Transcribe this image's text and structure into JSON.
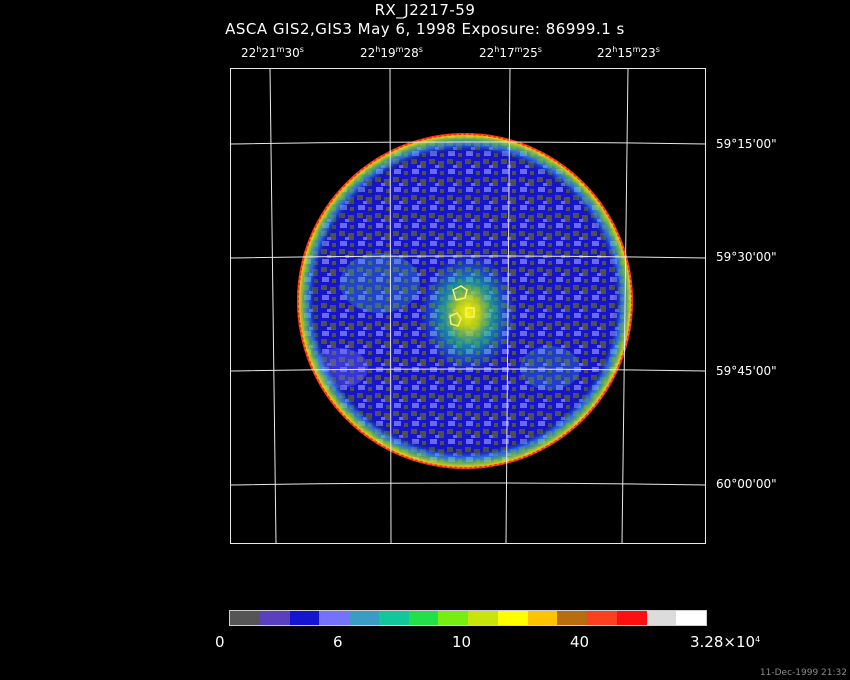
{
  "header": {
    "title": "RX_J2217-59",
    "subtitle": "ASCA GIS2,GIS3 May 6, 1998 Exposure: 86999.1 s"
  },
  "ra_labels": [
    {
      "h": "22",
      "m": "21",
      "s": "30"
    },
    {
      "h": "22",
      "m": "19",
      "s": "28"
    },
    {
      "h": "22",
      "m": "17",
      "s": "25"
    },
    {
      "h": "22",
      "m": "15",
      "s": "23"
    }
  ],
  "dec_labels": [
    "59°15'00\"",
    "59°30'00\"",
    "59°45'00\"",
    "60°00'00\""
  ],
  "colorbar": {
    "colors": [
      "#555555",
      "#5a3fbf",
      "#1414d2",
      "#7373ff",
      "#3c9dc4",
      "#12c89a",
      "#22e04a",
      "#78ee10",
      "#c8e40a",
      "#ffff00",
      "#ffc400",
      "#b86e10",
      "#ff4020",
      "#ff1010",
      "#dcdcdc",
      "#ffffff"
    ],
    "labels": [
      "0",
      "6",
      "10",
      "40"
    ],
    "max_mantissa": "3.28×10",
    "max_exponent": "4"
  },
  "footer": {
    "timestamp": "11-Dec-1999 21:32"
  }
}
